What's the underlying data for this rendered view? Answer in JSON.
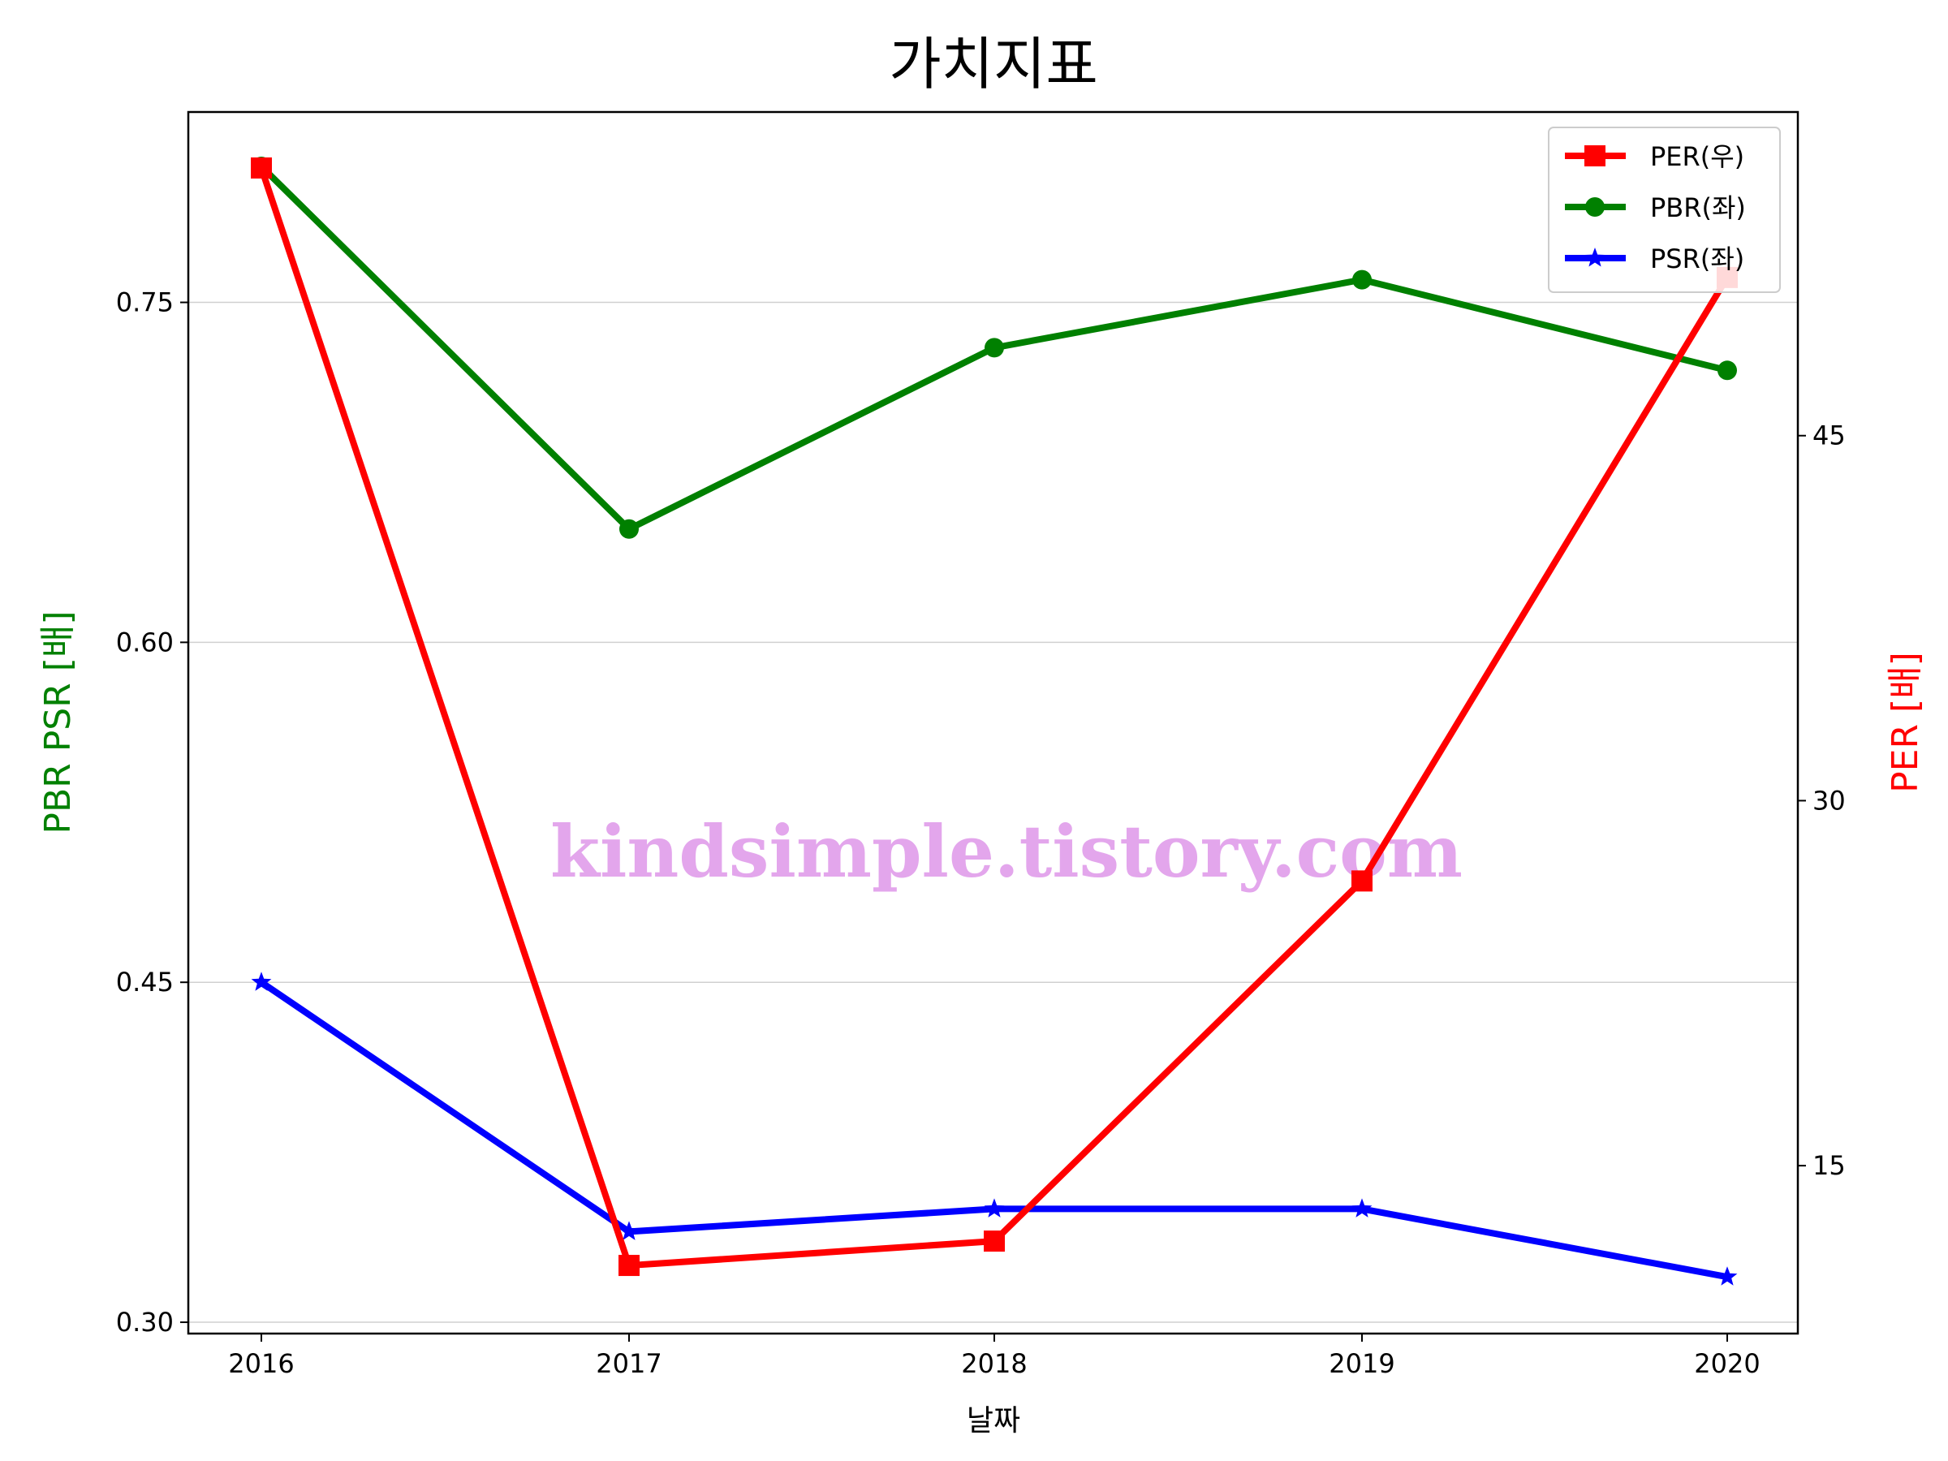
{
  "chart_data": {
    "type": "line",
    "title": "가치지표",
    "xlabel": "날짜",
    "ylabel_left": "PBR PSR [배]",
    "ylabel_right": "PER [배]",
    "categories": [
      "2016",
      "2017",
      "2018",
      "2019",
      "2020"
    ],
    "left_axis": {
      "ylim": [
        0.295,
        0.834
      ],
      "ticks": [
        "0.30",
        "0.45",
        "0.60",
        "0.75"
      ],
      "tick_values": [
        0.3,
        0.45,
        0.6,
        0.75
      ]
    },
    "right_axis": {
      "ylim": [
        8.1,
        58.3
      ],
      "ticks": [
        "15",
        "30",
        "45"
      ],
      "tick_values": [
        15,
        30,
        45
      ]
    },
    "grid": "horizontal (left axis)",
    "legend_position": "top-right",
    "series": [
      {
        "name": "PER(우)",
        "axis": "right",
        "color": "#ff0000",
        "marker": "square",
        "values": [
          56.0,
          10.9,
          11.9,
          26.7,
          51.5
        ]
      },
      {
        "name": "PBR(좌)",
        "axis": "left",
        "color": "#008000",
        "marker": "circle",
        "values": [
          0.81,
          0.65,
          0.73,
          0.76,
          0.72
        ]
      },
      {
        "name": "PSR(좌)",
        "axis": "left",
        "color": "#0000ff",
        "marker": "star",
        "values": [
          0.45,
          0.34,
          0.35,
          0.35,
          0.32
        ]
      }
    ]
  },
  "watermark": "kindsimple.tistory.com"
}
